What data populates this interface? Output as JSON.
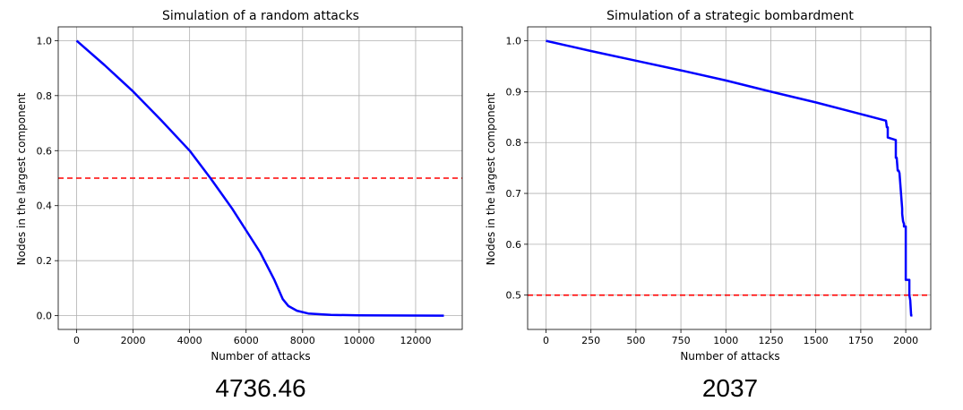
{
  "colors": {
    "line": "#0000ff",
    "threshold": "#ff0000",
    "grid": "#b0b0b0",
    "axes": "#000000"
  },
  "chart_data": [
    {
      "type": "line",
      "title": "Simulation of a random attacks",
      "xlabel": "Number of attacks",
      "ylabel": "Nodes in the largest component",
      "xlim": [
        -650,
        13650
      ],
      "ylim": [
        -0.05,
        1.05
      ],
      "xticks": [
        0,
        2000,
        4000,
        6000,
        8000,
        10000,
        12000
      ],
      "xtick_labels": [
        "0",
        "2000",
        "4000",
        "6000",
        "8000",
        "10000",
        "12000"
      ],
      "yticks": [
        0.0,
        0.2,
        0.4,
        0.6,
        0.8,
        1.0
      ],
      "ytick_labels": [
        "0.0",
        "0.2",
        "0.4",
        "0.6",
        "0.8",
        "1.0"
      ],
      "grid": true,
      "threshold": 0.5,
      "series": [
        {
          "x": [
            0,
            1000,
            2000,
            3000,
            4000,
            4736,
            5500,
            6500,
            7000,
            7300,
            7500,
            7800,
            8200,
            9000,
            10000,
            13000
          ],
          "values": [
            1.0,
            0.91,
            0.815,
            0.71,
            0.6,
            0.5,
            0.39,
            0.23,
            0.13,
            0.06,
            0.035,
            0.018,
            0.008,
            0.003,
            0.001,
            0.0
          ]
        }
      ],
      "annotation": "4736.46"
    },
    {
      "type": "line",
      "title": "Simulation of a strategic bombardment",
      "xlabel": "Number of attacks",
      "ylabel": "Nodes in the largest component",
      "xlim": [
        -102,
        2139
      ],
      "ylim": [
        0.4325,
        1.0275
      ],
      "xticks": [
        0,
        250,
        500,
        750,
        1000,
        1250,
        1500,
        1750,
        2000
      ],
      "xtick_labels": [
        "0",
        "250",
        "500",
        "750",
        "1000",
        "1250",
        "1500",
        "1750",
        "2000"
      ],
      "yticks": [
        0.5,
        0.6,
        0.7,
        0.8,
        0.9,
        1.0
      ],
      "ytick_labels": [
        "0.5",
        "0.6",
        "0.7",
        "0.8",
        "0.9",
        "1.0"
      ],
      "grid": true,
      "threshold": 0.5,
      "series": [
        {
          "x": [
            0,
            250,
            500,
            750,
            1000,
            1250,
            1500,
            1750,
            1890,
            1895,
            1900,
            1900,
            1945,
            1945,
            1950,
            1955,
            1960,
            1965,
            1965,
            1980,
            1980,
            1985,
            1990,
            1990,
            2000,
            2000,
            2020,
            2020,
            2025,
            2030,
            2037
          ],
          "values": [
            1.0,
            0.98,
            0.961,
            0.942,
            0.922,
            0.9,
            0.879,
            0.856,
            0.843,
            0.83,
            0.83,
            0.81,
            0.805,
            0.77,
            0.77,
            0.745,
            0.745,
            0.74,
            0.74,
            0.67,
            0.66,
            0.645,
            0.64,
            0.635,
            0.635,
            0.53,
            0.53,
            0.5,
            0.49,
            0.46,
            0.46
          ]
        }
      ],
      "annotation": "2037"
    }
  ]
}
